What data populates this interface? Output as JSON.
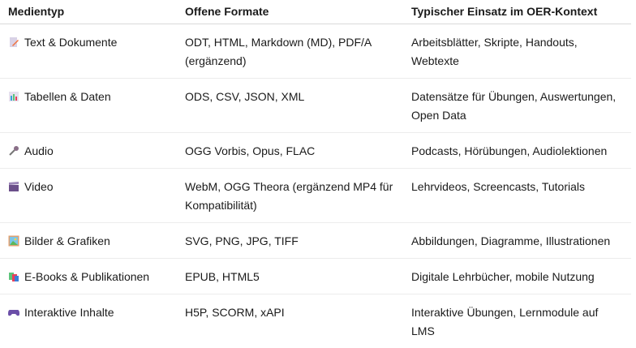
{
  "headers": [
    "Medientyp",
    "Offene Formate",
    "Typischer Einsatz im OER-Kontext"
  ],
  "rows": [
    {
      "icon": "memo-icon",
      "type": "Text & Dokumente",
      "formats": "ODT, HTML, Markdown (MD), PDF/A (ergänzend)",
      "usage": "Arbeitsblätter, Skripte, Handouts, Webtexte"
    },
    {
      "icon": "bar-chart-icon",
      "type": "Tabellen & Daten",
      "formats": "ODS, CSV, JSON, XML",
      "usage": "Datensätze für Übungen, Auswertungen, Open Data"
    },
    {
      "icon": "microphone-icon",
      "type": "Audio",
      "formats": "OGG Vorbis, Opus, FLAC",
      "usage": "Podcasts, Hörübungen, Audiolektionen"
    },
    {
      "icon": "clapper-board-icon",
      "type": "Video",
      "formats": "WebM, OGG Theora (ergänzend MP4 für Kompatibilität)",
      "usage": "Lehrvideos, Screencasts, Tutorials"
    },
    {
      "icon": "framed-picture-icon",
      "type": "Bilder & Grafiken",
      "formats": "SVG, PNG, JPG, TIFF",
      "usage": "Abbildungen, Diagramme, Illustrationen"
    },
    {
      "icon": "books-icon",
      "type": "E-Books & Publikationen",
      "formats": "EPUB, HTML5",
      "usage": "Digitale Lehrbücher, mobile Nutzung"
    },
    {
      "icon": "game-controller-icon",
      "type": "Interaktive Inhalte",
      "formats": "H5P, SCORM, xAPI",
      "usage": "Interaktive Übungen, Lernmodule auf LMS"
    }
  ]
}
